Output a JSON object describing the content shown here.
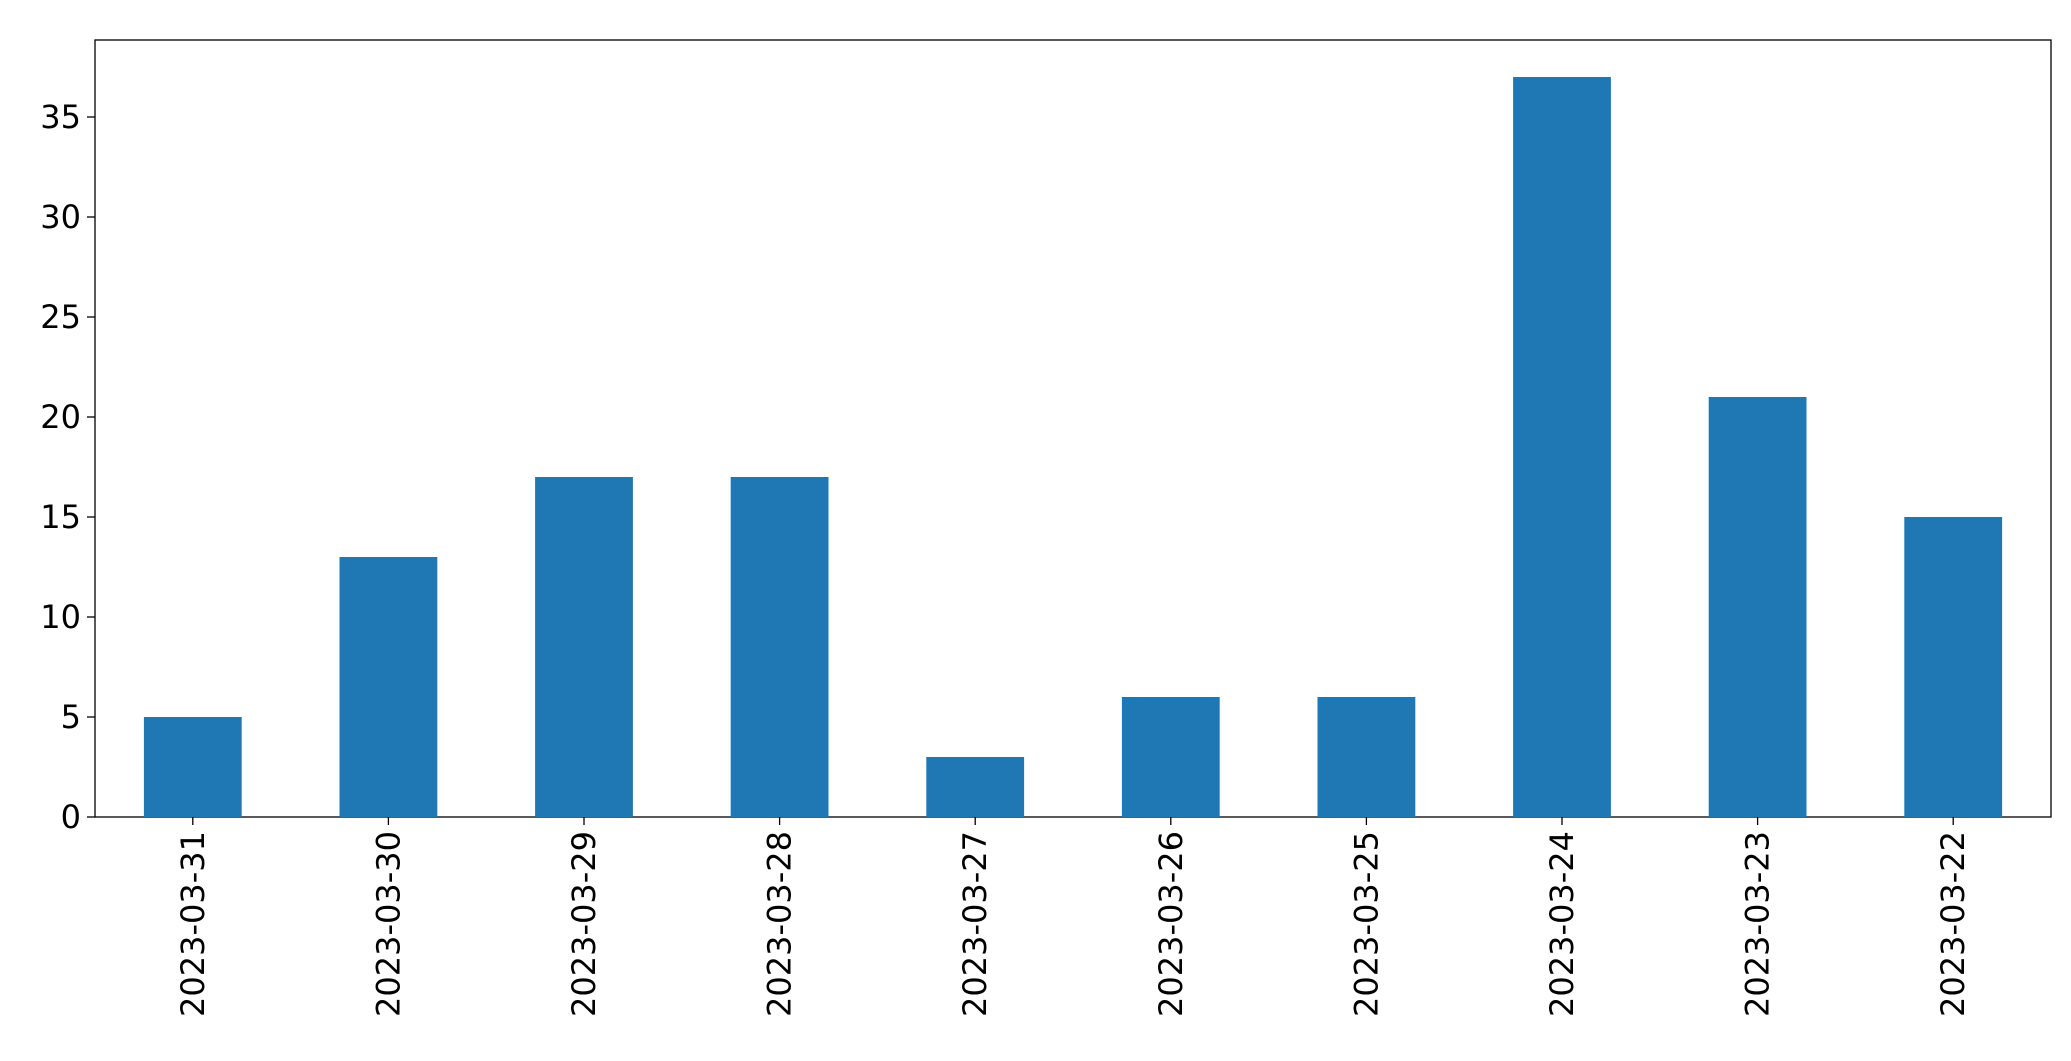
{
  "chart_data": {
    "type": "bar",
    "categories": [
      "2023-03-31",
      "2023-03-30",
      "2023-03-29",
      "2023-03-28",
      "2023-03-27",
      "2023-03-26",
      "2023-03-25",
      "2023-03-24",
      "2023-03-23",
      "2023-03-22"
    ],
    "values": [
      5,
      13,
      17,
      17,
      3,
      6,
      6,
      37,
      21,
      15
    ],
    "color": "#1f77b4",
    "ylim": [
      0,
      38.85
    ],
    "yticks": [
      0,
      5,
      10,
      15,
      20,
      25,
      30,
      35
    ],
    "grid": false
  }
}
